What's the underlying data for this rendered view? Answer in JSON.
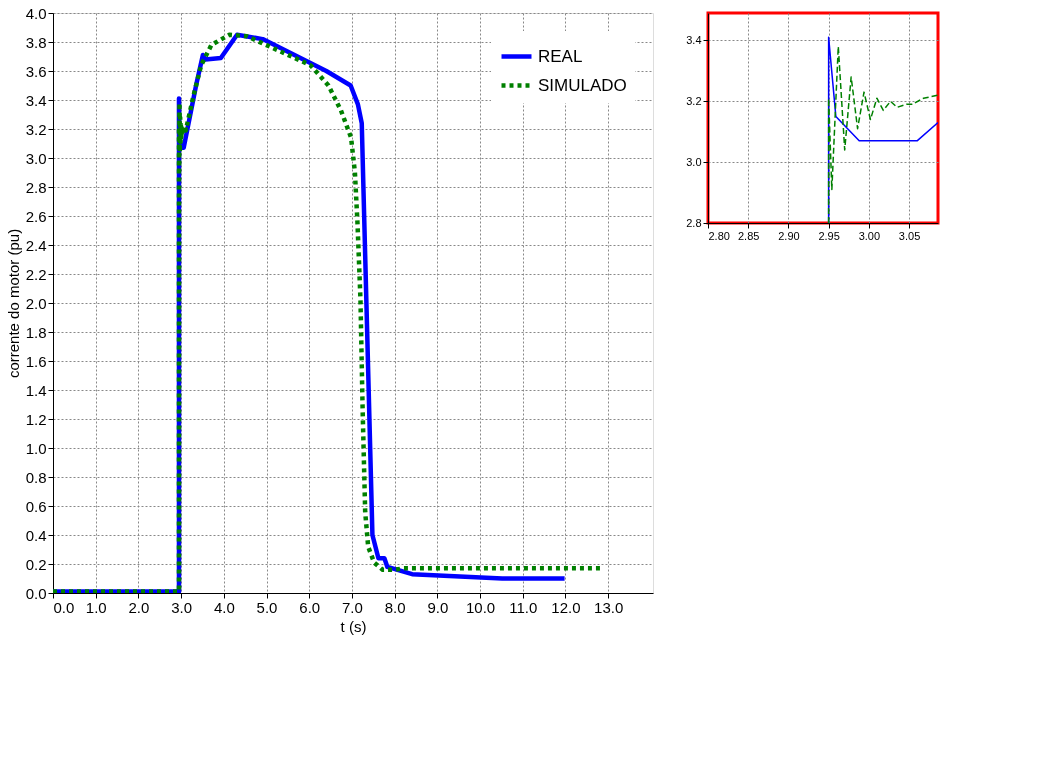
{
  "chart_data": [
    {
      "type": "line",
      "xlabel": "t (s)",
      "ylabel": "corrente do motor (pu)",
      "xlim": [
        0,
        14.05
      ],
      "ylim": [
        0,
        4
      ],
      "xticks": [
        {
          "value": 0,
          "label": "0.0"
        },
        {
          "value": 1,
          "label": "1.0"
        },
        {
          "value": 2,
          "label": "2.0"
        },
        {
          "value": 3,
          "label": "3.0"
        },
        {
          "value": 4,
          "label": "4.0"
        },
        {
          "value": 5,
          "label": "5.0"
        },
        {
          "value": 6,
          "label": "6.0"
        },
        {
          "value": 7,
          "label": "7.0"
        },
        {
          "value": 8,
          "label": "8.0"
        },
        {
          "value": 9,
          "label": "9.0"
        },
        {
          "value": 10,
          "label": "10.0"
        },
        {
          "value": 11,
          "label": "11.0"
        },
        {
          "value": 12,
          "label": "12.0"
        },
        {
          "value": 13,
          "label": "13.0"
        }
      ],
      "yticks": [
        {
          "value": 0,
          "label": "0.0"
        },
        0.2,
        0.4,
        0.6,
        0.8,
        {
          "value": 1,
          "label": "1.0"
        },
        1.2,
        1.4,
        1.6,
        1.8,
        {
          "value": 2,
          "label": "2.0"
        },
        2.2,
        2.4,
        2.6,
        2.8,
        {
          "value": 3,
          "label": "3.0"
        },
        3.2,
        3.4,
        3.6,
        3.8,
        {
          "value": 4,
          "label": "4.0"
        }
      ],
      "grid": true,
      "legend": "top right",
      "marker": "none",
      "series": [
        {
          "name": "REAL",
          "color": "#0000ff",
          "line_style": "solid",
          "x": [
            0,
            2.95,
            2.95,
            2.959,
            2.988,
            3.06,
            3.35,
            3.51,
            3.57,
            3.93,
            4.31,
            4.91,
            6.4,
            6.97,
            7.14,
            7.23,
            7.34,
            7.48,
            7.62,
            7.76,
            7.83,
            8.41,
            10.52,
            11.98
          ],
          "values": [
            0.01,
            0.01,
            3.41,
            3.15,
            3.07,
            3.07,
            3.5,
            3.71,
            3.68,
            3.69,
            3.85,
            3.82,
            3.6,
            3.5,
            3.37,
            3.24,
            1.99,
            0.4,
            0.24,
            0.24,
            0.18,
            0.13,
            0.1,
            0.1
          ]
        },
        {
          "name": "SIMULADO",
          "color": "#008000",
          "line_style": "dotted",
          "x": [
            0,
            2.95,
            2.95,
            2.954,
            2.962,
            2.97,
            2.978,
            2.986,
            2.994,
            3.002,
            3.01,
            3.018,
            3.027,
            3.035,
            3.047,
            3.054,
            3.068,
            3.086,
            3.11,
            3.29,
            3.47,
            3.71,
            4.13,
            4.54,
            5.14,
            6.03,
            6.45,
            6.74,
            6.98,
            7.07,
            7.13,
            7.2,
            7.25,
            7.31,
            7.38,
            7.52,
            7.72,
            8.0,
            8.2,
            12.84
          ],
          "values": [
            0.01,
            0.01,
            3.21,
            2.91,
            3.38,
            3.04,
            3.28,
            3.11,
            3.23,
            3.14,
            3.21,
            3.17,
            3.2,
            3.18,
            3.19,
            3.19,
            3.21,
            3.22,
            3.19,
            3.43,
            3.64,
            3.78,
            3.85,
            3.84,
            3.76,
            3.64,
            3.5,
            3.33,
            3.14,
            2.9,
            2.55,
            2.02,
            1.27,
            0.56,
            0.32,
            0.21,
            0.16,
            0.16,
            0.17,
            0.17
          ]
        }
      ]
    },
    {
      "type": "line",
      "xlim": [
        2.8,
        3.086
      ],
      "ylim": [
        2.8,
        3.49
      ],
      "xticks": [
        {
          "value": 2.8,
          "label": "2.80"
        },
        2.85,
        {
          "value": 2.9,
          "label": "2.90"
        },
        2.95,
        {
          "value": 3,
          "label": "3.00"
        },
        3.05
      ],
      "yticks": [
        2.8,
        {
          "value": 3,
          "label": "3.0"
        },
        3.2,
        3.4
      ],
      "grid": true,
      "marker": "none",
      "series": [
        {
          "color": "#0000ff",
          "line_style": "solid",
          "x": [
            2.95,
            2.95,
            2.959,
            2.988,
            3.06,
            3.086
          ],
          "values": [
            2.8,
            3.41,
            3.15,
            3.07,
            3.07,
            3.13
          ]
        },
        {
          "color": "#008000",
          "line_style": "dashed",
          "x": [
            2.95,
            2.95,
            2.954,
            2.962,
            2.97,
            2.978,
            2.986,
            2.994,
            3.002,
            3.01,
            3.018,
            3.027,
            3.035,
            3.047,
            3.054,
            3.068,
            3.086
          ],
          "values": [
            2.8,
            3.21,
            2.91,
            3.38,
            3.04,
            3.28,
            3.11,
            3.23,
            3.14,
            3.21,
            3.17,
            3.2,
            3.18,
            3.19,
            3.19,
            3.21,
            3.22
          ]
        }
      ]
    }
  ]
}
